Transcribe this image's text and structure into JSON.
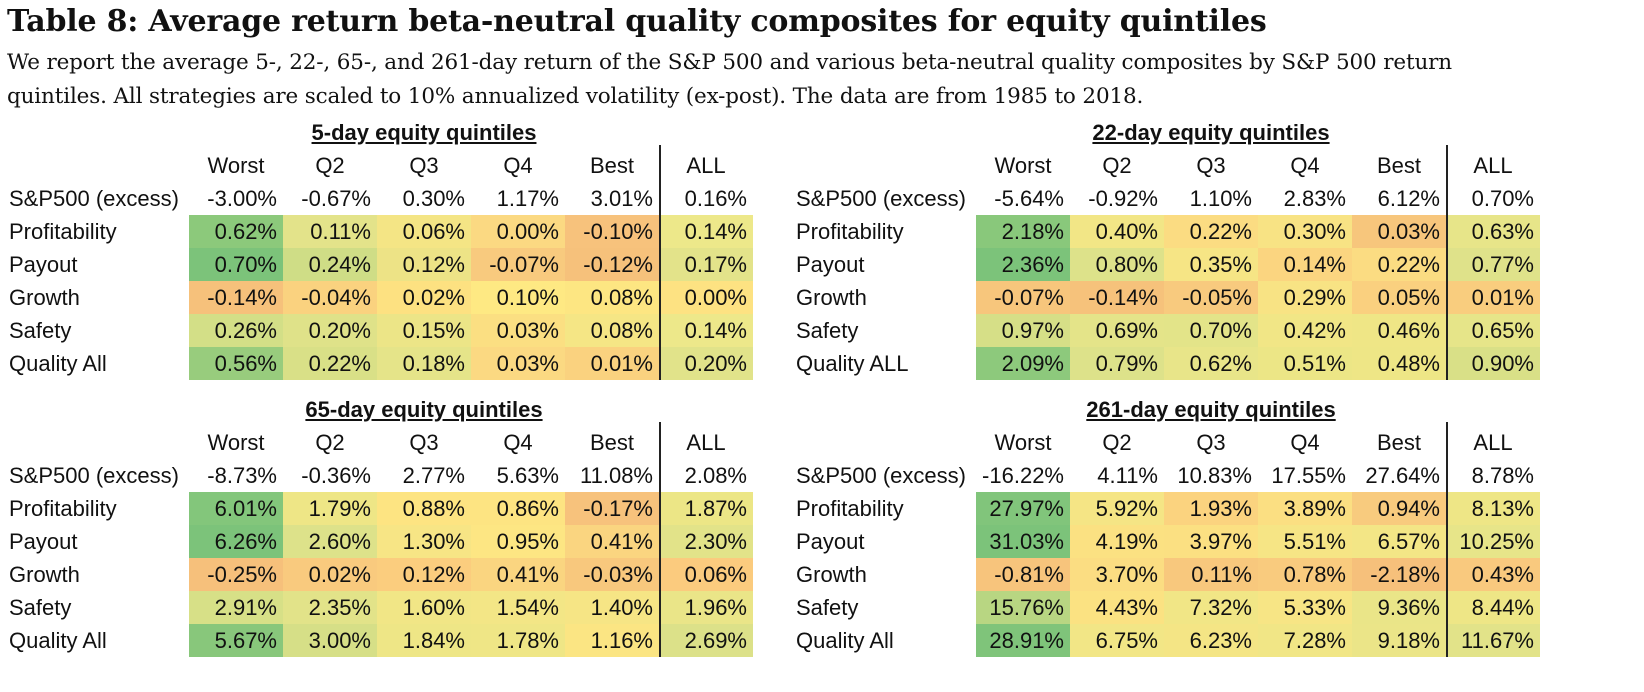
{
  "title": "Table 8: Average return beta-neutral quality composites for equity quintiles",
  "description": [
    "We report the average 5-, 22-, 65-, and 261-day return of the S&P 500 and various beta-neutral quality composites by S&P 500 return",
    "quintiles. All strategies are scaled to 10% annualized volatility (ex-post). The data are from 1985 to 2018."
  ],
  "panels": [
    {
      "heading": "5-day equity quintiles",
      "columns": [
        "Worst",
        "Q2",
        "Q3",
        "Q4",
        "Best",
        "ALL"
      ],
      "rows": [
        {
          "label": "S&P500 (excess)",
          "values": [
            "-3.00%",
            "-0.67%",
            "0.30%",
            "1.17%",
            "3.01%",
            "0.16%"
          ],
          "colors": [
            "#ffffff",
            "#ffffff",
            "#ffffff",
            "#ffffff",
            "#ffffff",
            "#ffffff"
          ]
        },
        {
          "label": "Profitability",
          "values": [
            "0.62%",
            "0.11%",
            "0.06%",
            "0.00%",
            "-0.10%",
            "0.14%"
          ],
          "colors": [
            "#8cc97b",
            "#e3e38a",
            "#f4e585",
            "#fbd982",
            "#f7c27c",
            "#ede88a"
          ]
        },
        {
          "label": "Payout",
          "values": [
            "0.70%",
            "0.24%",
            "0.12%",
            "-0.07%",
            "-0.12%",
            "0.17%"
          ],
          "colors": [
            "#7cc37a",
            "#cfdd86",
            "#ede386",
            "#f8ca7e",
            "#f6c17b",
            "#e3e38a"
          ]
        },
        {
          "label": "Growth",
          "values": [
            "-0.14%",
            "-0.04%",
            "0.02%",
            "0.10%",
            "0.08%",
            "0.00%"
          ],
          "colors": [
            "#f6c17b",
            "#fad27f",
            "#fde181",
            "#fee983",
            "#fde682",
            "#fde282"
          ]
        },
        {
          "label": "Safety",
          "values": [
            "0.26%",
            "0.20%",
            "0.15%",
            "0.03%",
            "0.08%",
            "0.14%"
          ],
          "colors": [
            "#d3df87",
            "#dfe289",
            "#ece587",
            "#fbdf82",
            "#f5e685",
            "#ede88a"
          ]
        },
        {
          "label": "Quality All",
          "values": [
            "0.56%",
            "0.22%",
            "0.18%",
            "0.03%",
            "0.01%",
            "0.20%"
          ],
          "colors": [
            "#98cc7d",
            "#d9e087",
            "#e5e489",
            "#fbd982",
            "#fad27f",
            "#e1e38a"
          ]
        }
      ]
    },
    {
      "heading": "22-day equity quintiles",
      "columns": [
        "Worst",
        "Q2",
        "Q3",
        "Q4",
        "Best",
        "ALL"
      ],
      "rows": [
        {
          "label": "S&P500 (excess)",
          "values": [
            "-5.64%",
            "-0.92%",
            "1.10%",
            "2.83%",
            "6.12%",
            "0.70%"
          ],
          "colors": [
            "#ffffff",
            "#ffffff",
            "#ffffff",
            "#ffffff",
            "#ffffff",
            "#ffffff"
          ]
        },
        {
          "label": "Profitability",
          "values": [
            "2.18%",
            "0.40%",
            "0.22%",
            "0.30%",
            "0.03%",
            "0.63%"
          ],
          "colors": [
            "#89c87b",
            "#f2e686",
            "#fbdc82",
            "#f8e384",
            "#f7c67c",
            "#e7e589"
          ]
        },
        {
          "label": "Payout",
          "values": [
            "2.36%",
            "0.80%",
            "0.35%",
            "0.14%",
            "0.22%",
            "0.77%"
          ],
          "colors": [
            "#7cc37a",
            "#dde28a",
            "#f6e585",
            "#fbd580",
            "#fbdc82",
            "#dfe28a"
          ]
        },
        {
          "label": "Growth",
          "values": [
            "-0.07%",
            "-0.14%",
            "-0.05%",
            "0.29%",
            "0.05%",
            "0.01%"
          ],
          "colors": [
            "#f7c67c",
            "#f6c27b",
            "#f8ca7e",
            "#f8e384",
            "#fad07f",
            "#f9cd7e"
          ]
        },
        {
          "label": "Safety",
          "values": [
            "0.97%",
            "0.69%",
            "0.70%",
            "0.42%",
            "0.46%",
            "0.65%"
          ],
          "colors": [
            "#d6df87",
            "#e4e489",
            "#e3e489",
            "#f1e686",
            "#efe686",
            "#e6e589"
          ]
        },
        {
          "label": "Quality ALL",
          "values": [
            "2.09%",
            "0.79%",
            "0.62%",
            "0.51%",
            "0.48%",
            "0.90%"
          ],
          "colors": [
            "#8dc97c",
            "#dde28a",
            "#e8e589",
            "#ece686",
            "#eee686",
            "#d9e087"
          ]
        }
      ]
    },
    {
      "heading": "65-day equity quintiles",
      "columns": [
        "Worst",
        "Q2",
        "Q3",
        "Q4",
        "Best",
        "ALL"
      ],
      "rows": [
        {
          "label": "S&P500 (excess)",
          "values": [
            "-8.73%",
            "-0.36%",
            "2.77%",
            "5.63%",
            "11.08%",
            "2.08%"
          ],
          "colors": [
            "#ffffff",
            "#ffffff",
            "#ffffff",
            "#ffffff",
            "#ffffff",
            "#ffffff"
          ]
        },
        {
          "label": "Profitability",
          "values": [
            "6.01%",
            "1.79%",
            "0.88%",
            "0.86%",
            "-0.17%",
            "1.87%"
          ],
          "colors": [
            "#83c67b",
            "#eee686",
            "#fde482",
            "#fde482",
            "#f7c27c",
            "#ece686"
          ]
        },
        {
          "label": "Payout",
          "values": [
            "6.26%",
            "2.60%",
            "1.30%",
            "0.95%",
            "0.41%",
            "2.30%"
          ],
          "colors": [
            "#7cc37a",
            "#dde28a",
            "#f7e585",
            "#fde683",
            "#fad580",
            "#e2e389"
          ]
        },
        {
          "label": "Growth",
          "values": [
            "-0.25%",
            "0.02%",
            "0.12%",
            "0.41%",
            "-0.03%",
            "0.06%"
          ],
          "colors": [
            "#f6c07b",
            "#f9ca7e",
            "#fbcd7e",
            "#fad580",
            "#f8c87d",
            "#fbcb7e"
          ]
        },
        {
          "label": "Safety",
          "values": [
            "2.91%",
            "2.35%",
            "1.60%",
            "1.54%",
            "1.40%",
            "1.96%"
          ],
          "colors": [
            "#d7e087",
            "#e2e389",
            "#f1e686",
            "#f3e686",
            "#f6e585",
            "#eae588"
          ]
        },
        {
          "label": "Quality All",
          "values": [
            "5.67%",
            "3.00%",
            "1.84%",
            "1.78%",
            "1.16%",
            "2.69%"
          ],
          "colors": [
            "#88c77b",
            "#d6df87",
            "#eee686",
            "#efe686",
            "#fbe583",
            "#dce189"
          ]
        }
      ]
    },
    {
      "heading": "261-day equity quintiles",
      "columns": [
        "Worst",
        "Q2",
        "Q3",
        "Q4",
        "Best",
        "ALL"
      ],
      "rows": [
        {
          "label": "S&P500 (excess)",
          "values": [
            "-16.22%",
            "4.11%",
            "10.83%",
            "17.55%",
            "27.64%",
            "8.78%"
          ],
          "colors": [
            "#ffffff",
            "#ffffff",
            "#ffffff",
            "#ffffff",
            "#ffffff",
            "#ffffff"
          ]
        },
        {
          "label": "Profitability",
          "values": [
            "27.97%",
            "5.92%",
            "1.93%",
            "3.89%",
            "0.94%",
            "8.13%"
          ],
          "colors": [
            "#81c57b",
            "#f5e585",
            "#fbd37f",
            "#fbdf82",
            "#f8cb7e",
            "#eee686"
          ]
        },
        {
          "label": "Payout",
          "values": [
            "31.03%",
            "4.19%",
            "3.97%",
            "5.51%",
            "6.57%",
            "10.25%"
          ],
          "colors": [
            "#7cc37a",
            "#fbe182",
            "#fbe082",
            "#f6e585",
            "#f3e686",
            "#e7e589"
          ]
        },
        {
          "label": "Growth",
          "values": [
            "-0.81%",
            "3.70%",
            "0.11%",
            "0.78%",
            "-2.18%",
            "0.43%"
          ],
          "colors": [
            "#f7c47c",
            "#fbdd82",
            "#f8c87d",
            "#f9cb7e",
            "#f6c07b",
            "#f9c97e"
          ]
        },
        {
          "label": "Safety",
          "values": [
            "15.76%",
            "4.43%",
            "7.32%",
            "5.33%",
            "9.36%",
            "8.44%"
          ],
          "colors": [
            "#b8d682",
            "#fbe282",
            "#f1e686",
            "#f7e585",
            "#eae588",
            "#eee686"
          ]
        },
        {
          "label": "Quality All",
          "values": [
            "28.91%",
            "6.75%",
            "6.23%",
            "7.28%",
            "9.18%",
            "11.67%"
          ],
          "colors": [
            "#7fc47a",
            "#f2e686",
            "#f4e585",
            "#f1e686",
            "#ebe588",
            "#e2e389"
          ]
        }
      ]
    }
  ]
}
